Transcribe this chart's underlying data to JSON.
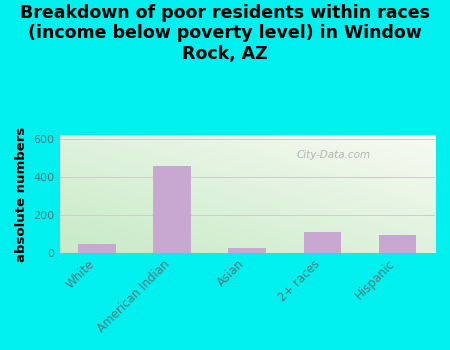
{
  "title": "Breakdown of poor residents within races\n(income below poverty level) in Window\nRock, AZ",
  "categories": [
    "White",
    "American Indian",
    "Asian",
    "2+ races",
    "Hispanic"
  ],
  "values": [
    45,
    455,
    25,
    110,
    95
  ],
  "bar_color": "#c8a8d0",
  "ylabel": "absolute numbers",
  "ylim": [
    0,
    620
  ],
  "yticks": [
    0,
    200,
    400,
    600
  ],
  "background_color": "#00f0f0",
  "watermark": "City-Data.com",
  "title_fontsize": 12.5,
  "ylabel_fontsize": 9.5,
  "tick_label_color": "#557777",
  "ytick_fontsize": 8,
  "xtick_fontsize": 8.5,
  "grid_color": "#cccccc",
  "bar_width": 0.5
}
